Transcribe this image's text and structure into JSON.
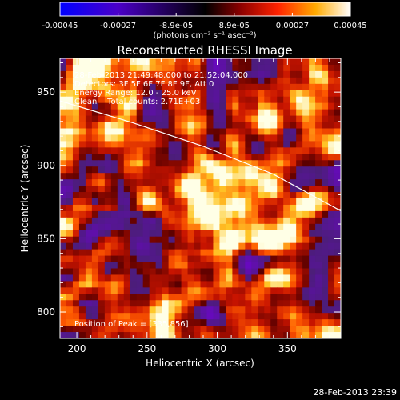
{
  "timestamp": "28-Feb-2013 23:39",
  "colorbar": {
    "tick_labels": [
      "-0.00045",
      "-0.00027",
      "-8.9e-05",
      "8.9e-05",
      "0.00027",
      "0.00045"
    ],
    "unit_label": "(photons cm⁻² s⁻¹ asec⁻²)",
    "range": [
      -0.00045,
      0.00045
    ]
  },
  "chart_data": {
    "type": "heatmap",
    "title": "Reconstructed RHESSI Image",
    "xlabel": "Heliocentric X (arcsec)",
    "ylabel": "Heliocentric Y (arcsec)",
    "xlim": [
      188,
      388
    ],
    "ylim": [
      782,
      973
    ],
    "x_ticks": [
      "200",
      "250",
      "300",
      "350"
    ],
    "y_ticks": [
      "800",
      "850",
      "900",
      "950"
    ],
    "annotations": [
      "28-Feb-2013 21:49:48.000 to 21:52:04.000",
      "Detectors: 3F 5F 6F 7F 8F 9F, Att 0",
      "Energy Range: 12.0 - 25.0 keV",
      "Clean    Total counts: 2.71E+03"
    ],
    "peak_label": "Position of Peak = [335,856]",
    "peak_position": [
      335,
      856
    ],
    "limb_curve": {
      "x": [
        188,
        240,
        290,
        340,
        388
      ],
      "y": [
        944,
        929,
        913,
        894,
        869
      ]
    }
  }
}
